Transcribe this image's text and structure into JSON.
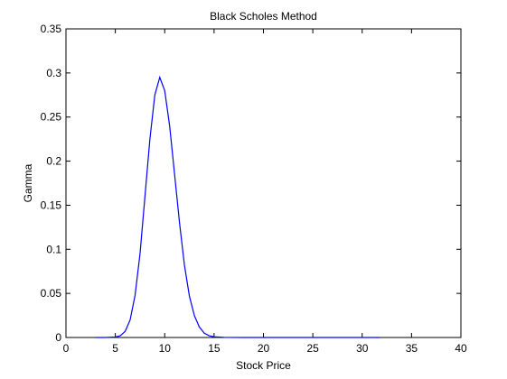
{
  "chart_data": {
    "type": "line",
    "title": "Black Scholes Method",
    "xlabel": "Stock Price",
    "ylabel": "Gamma",
    "xlim": [
      0,
      40
    ],
    "ylim": [
      0,
      0.35
    ],
    "xticks": [
      0,
      5,
      10,
      15,
      20,
      25,
      30,
      35,
      40
    ],
    "yticks": [
      0,
      0.05,
      0.1,
      0.15,
      0.2,
      0.25,
      0.3,
      0.35
    ],
    "xtick_labels": [
      "0",
      "5",
      "10",
      "15",
      "20",
      "25",
      "30",
      "35",
      "40"
    ],
    "ytick_labels": [
      "0",
      "0.05",
      "0.1",
      "0.15",
      "0.2",
      "0.25",
      "0.3",
      "0.35"
    ],
    "grid": false,
    "series": [
      {
        "color": "#0000ff",
        "x": [
          3,
          4,
          5,
          5.5,
          6,
          6.5,
          7,
          7.5,
          8,
          8.5,
          9,
          9.5,
          10,
          10.5,
          11,
          11.5,
          12,
          12.5,
          13,
          13.5,
          14,
          14.5,
          15,
          16,
          18,
          20,
          25,
          30,
          31.8
        ],
        "y": [
          0,
          0,
          0.0005,
          0.002,
          0.007,
          0.02,
          0.048,
          0.095,
          0.16,
          0.225,
          0.275,
          0.295,
          0.28,
          0.24,
          0.185,
          0.13,
          0.082,
          0.047,
          0.025,
          0.012,
          0.005,
          0.002,
          0.0008,
          0.0001,
          0,
          0,
          0,
          0,
          0
        ]
      }
    ]
  }
}
